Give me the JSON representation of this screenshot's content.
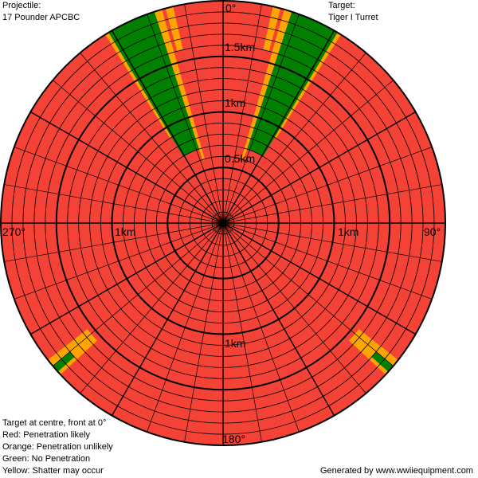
{
  "header": {
    "projectile_label": "Projectile:",
    "projectile_name": "17 Pounder APCBC",
    "target_label": "Target:",
    "target_name": "Tiger I Turret"
  },
  "legend": {
    "line1": "Target at centre, front at 0°",
    "line2": "Red: Penetration likely",
    "line3": "Orange: Penetration unlikely",
    "line4": "Green: No Penetration",
    "line5": "Yellow: Shatter may occur"
  },
  "footer": {
    "credit": "Generated by www.wwiiequipment.com"
  },
  "colors": {
    "penetration_likely": "#f44336",
    "penetration_unlikely": "#ffa500",
    "no_penetration": "#007f00",
    "shatter": "#ffd700",
    "grid": "#000000"
  },
  "chart_data": {
    "type": "polar",
    "angle_unit": "degrees",
    "range_unit": "km",
    "max_range_km": 2.0,
    "angle_labels": {
      "a0": "0°",
      "a90": "90°",
      "a180": "180°",
      "a270": "270°"
    },
    "range_labels": {
      "top_0_5": "0.5km",
      "top_1": "1km",
      "top_1_5": "1.5km",
      "left_1": "1km",
      "right_1": "1km",
      "bottom_1": "1km"
    },
    "sectors": [
      {
        "angle_from": -31,
        "angle_to": -18,
        "outcome": "no_penetration",
        "from_km": 1.25
      },
      {
        "angle_from": -31,
        "angle_to": -18,
        "outcome": "no_penetration",
        "from_km": 0.7
      },
      {
        "angle_from": -32,
        "angle_to": -31,
        "outcome": "penetration_unlikely",
        "from_km": 0.9
      },
      {
        "angle_from": -18,
        "angle_to": -16,
        "outcome": "penetration_unlikely",
        "from_km": 0.6
      },
      {
        "angle_from": -15,
        "angle_to": -13,
        "outcome": "penetration_unlikely",
        "from_km": 1.6
      },
      {
        "angle_from": 18,
        "angle_to": 31,
        "outcome": "no_penetration",
        "from_km": 0.7
      },
      {
        "angle_from": 16,
        "angle_to": 18,
        "outcome": "penetration_unlikely",
        "from_km": 0.6
      },
      {
        "angle_from": 31,
        "angle_to": 32,
        "outcome": "penetration_unlikely",
        "from_km": 0.9
      },
      {
        "angle_from": 13,
        "angle_to": 15,
        "outcome": "penetration_unlikely",
        "from_km": 1.6
      },
      {
        "angle_from": 128,
        "angle_to": 133,
        "outcome": "penetration_unlikely",
        "from_km": 1.55
      },
      {
        "angle_from": 130,
        "angle_to": 132,
        "outcome": "no_penetration",
        "from_km": 1.8
      },
      {
        "angle_from": -133,
        "angle_to": -128,
        "outcome": "penetration_unlikely",
        "from_km": 1.55
      },
      {
        "angle_from": -132,
        "angle_to": -130,
        "outcome": "no_penetration",
        "from_km": 1.8
      }
    ],
    "grid": true
  }
}
